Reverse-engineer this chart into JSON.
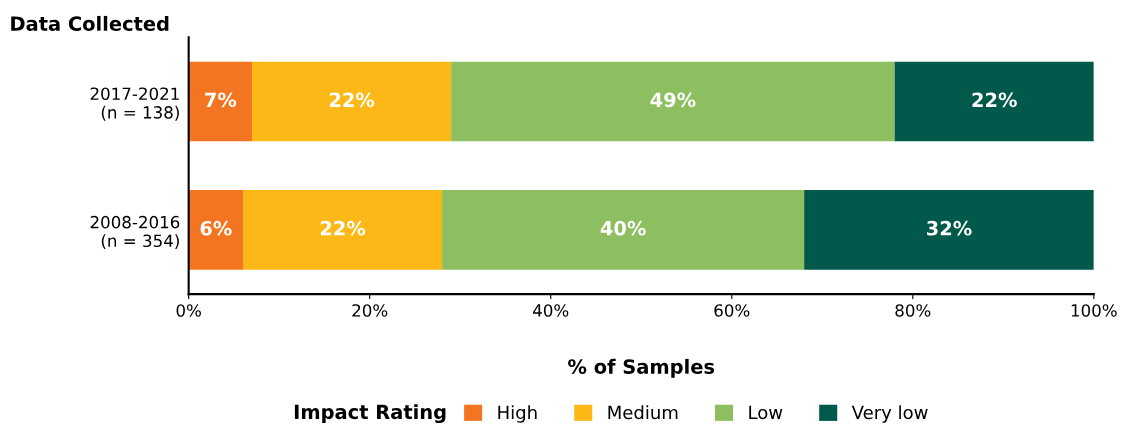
{
  "chart_data": {
    "type": "bar",
    "orientation": "horizontal",
    "stacked": true,
    "ylabel": "Data Collected",
    "xlabel": "% of Samples",
    "legend_title": "Impact Rating",
    "legend": "bottom",
    "grid": false,
    "categories": [
      "2017-2021\n(n = 138)",
      "2008-2016\n(n = 354)"
    ],
    "series": [
      {
        "name": "High",
        "color": "#f47521",
        "values": [
          7,
          6
        ],
        "value_labels": [
          "7%",
          "6%"
        ]
      },
      {
        "name": "Medium",
        "color": "#fbb817",
        "values": [
          22,
          22
        ],
        "value_labels": [
          "22%",
          "22%"
        ]
      },
      {
        "name": "Low",
        "color": "#8dbf60",
        "values": [
          49,
          40
        ],
        "value_labels": [
          "49%",
          "40%"
        ]
      },
      {
        "name": "Very low",
        "color": "#00594a",
        "values": [
          22,
          32
        ],
        "value_labels": [
          "22%",
          "32%"
        ]
      }
    ],
    "xlim": [
      0,
      100
    ],
    "xticks": [
      {
        "value": 0,
        "label": "0%"
      },
      {
        "value": 20,
        "label": "20%"
      },
      {
        "value": 40,
        "label": "40%"
      },
      {
        "value": 60,
        "label": "60%"
      },
      {
        "value": 80,
        "label": "80%"
      },
      {
        "value": 100,
        "label": "100%"
      }
    ]
  }
}
